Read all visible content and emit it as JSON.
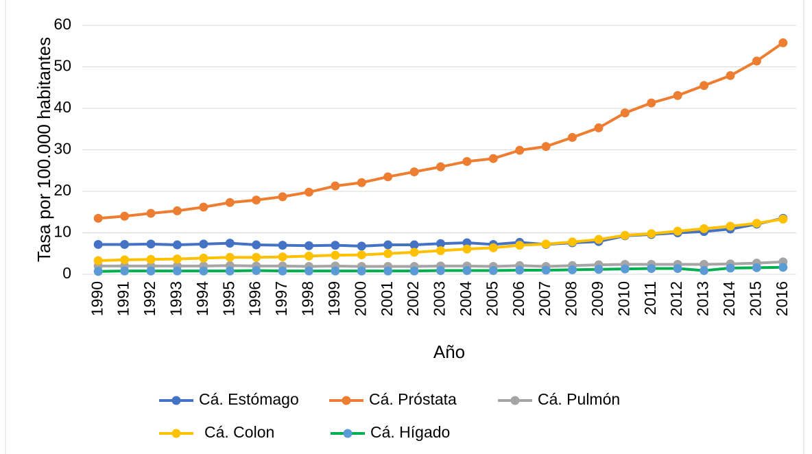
{
  "chart_data": {
    "type": "line",
    "y_label": "Tasa por 100.000 habitantes",
    "x_label": "Año",
    "categories": [
      "1990",
      "1991",
      "1992",
      "1993",
      "1994",
      "1995",
      "1996",
      "1997",
      "1998",
      "1999",
      "2000",
      "2001",
      "2002",
      "2003",
      "2004",
      "2005",
      "2006",
      "2007",
      "2008",
      "2009",
      "2010",
      "2011",
      "2012",
      "2013",
      "2014",
      "2015",
      "2016"
    ],
    "series": [
      {
        "name": "Cá. Estómago",
        "color": "#4472c4",
        "marker_color": "#4472c4",
        "values": [
          7.2,
          7.2,
          7.3,
          7.1,
          7.3,
          7.5,
          7.1,
          7.0,
          6.9,
          7.0,
          6.8,
          7.1,
          7.1,
          7.4,
          7.6,
          7.2,
          7.7,
          7.2,
          7.6,
          7.9,
          9.3,
          9.6,
          10.0,
          10.3,
          10.9,
          12.1,
          13.5
        ]
      },
      {
        "name": "Cá. Próstata",
        "color": "#ed7d31",
        "marker_color": "#ed7d31",
        "values": [
          13.5,
          14.0,
          14.7,
          15.3,
          16.2,
          17.3,
          17.9,
          18.7,
          19.8,
          21.3,
          22.1,
          23.5,
          24.7,
          25.9,
          27.2,
          27.9,
          29.9,
          30.8,
          33.0,
          35.3,
          38.9,
          41.3,
          43.1,
          45.5,
          47.9,
          51.4,
          55.8
        ]
      },
      {
        "name": "Cá. Pulmón",
        "color": "#a5a5a5",
        "marker_color": "#a5a5a5",
        "values": [
          2.0,
          2.0,
          2.0,
          2.0,
          2.0,
          2.1,
          2.0,
          2.0,
          1.9,
          2.0,
          1.9,
          1.9,
          1.9,
          2.0,
          2.0,
          1.9,
          2.1,
          1.9,
          2.1,
          2.3,
          2.4,
          2.4,
          2.4,
          2.4,
          2.5,
          2.7,
          3.0
        ]
      },
      {
        "name": "Cá. Colon",
        "color": "#ffc000",
        "marker_color": "#ffc000",
        "values": [
          3.3,
          3.5,
          3.6,
          3.7,
          3.9,
          4.1,
          4.1,
          4.2,
          4.4,
          4.6,
          4.7,
          5.0,
          5.3,
          5.7,
          6.1,
          6.4,
          7.0,
          7.3,
          7.8,
          8.4,
          9.4,
          9.8,
          10.4,
          11.0,
          11.6,
          12.3,
          13.3
        ]
      },
      {
        "name": "Cá. Hígado",
        "color": "#00b050",
        "marker_color": "#5b9bd5",
        "values": [
          0.7,
          0.8,
          0.8,
          0.8,
          0.8,
          0.8,
          0.9,
          0.8,
          0.8,
          0.8,
          0.8,
          0.8,
          0.8,
          0.9,
          0.9,
          0.9,
          1.0,
          1.0,
          1.1,
          1.2,
          1.3,
          1.4,
          1.4,
          0.9,
          1.5,
          1.6,
          1.7
        ]
      }
    ],
    "ylim": [
      0,
      60
    ],
    "yticks": [
      0,
      10,
      20,
      30,
      40,
      50,
      60
    ],
    "grid": true,
    "legend": "bottom"
  }
}
